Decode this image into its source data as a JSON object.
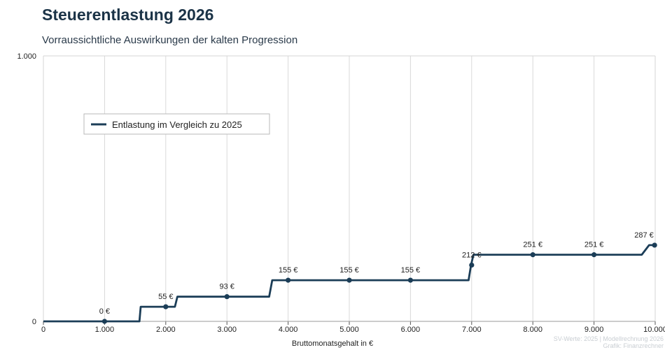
{
  "title": "Steuerentlastung 2026",
  "subtitle": "Vorraussichtliche Auswirkungen der kalten Progression",
  "credits": {
    "line1": "SV-Werte: 2025 | Modellrechnung 2026",
    "line2": "Grafik: Finanzrechner"
  },
  "colors": {
    "series": "#1b3d57",
    "grid": "#d9d9d9",
    "title": "#1b3347"
  },
  "chart_data": {
    "type": "line",
    "title": "Steuerentlastung 2026",
    "subtitle": "Vorraussichtliche Auswirkungen der kalten Progression",
    "xlabel": "Bruttomonatsgehalt in €",
    "ylabel": "",
    "xlim": [
      0,
      10000
    ],
    "ylim": [
      0,
      1000
    ],
    "grid": true,
    "legend_position": "top-left",
    "x_ticks": [
      {
        "value": 0,
        "label": "0"
      },
      {
        "value": 1000,
        "label": "1.000"
      },
      {
        "value": 2000,
        "label": "2.000"
      },
      {
        "value": 3000,
        "label": "3.000"
      },
      {
        "value": 4000,
        "label": "4.000"
      },
      {
        "value": 5000,
        "label": "5.000"
      },
      {
        "value": 6000,
        "label": "6.000"
      },
      {
        "value": 7000,
        "label": "7.000"
      },
      {
        "value": 8000,
        "label": "8.000"
      },
      {
        "value": 9000,
        "label": "9.000"
      },
      {
        "value": 10000,
        "label": "10.000"
      }
    ],
    "y_ticks": [
      {
        "value": 0,
        "label": "0"
      },
      {
        "value": 1000,
        "label": "1.000"
      }
    ],
    "series": [
      {
        "name": "Entlastung im Vergleich zu 2025",
        "line": [
          [
            0,
            0
          ],
          [
            1570,
            0
          ],
          [
            1590,
            55
          ],
          [
            1850,
            55
          ],
          [
            2150,
            55
          ],
          [
            2190,
            93
          ],
          [
            3690,
            93
          ],
          [
            3740,
            155
          ],
          [
            6950,
            155
          ],
          [
            6990,
            212
          ],
          [
            7030,
            251
          ],
          [
            9780,
            251
          ],
          [
            9900,
            287
          ],
          [
            10000,
            287
          ]
        ],
        "markers": [
          {
            "x": 1000,
            "y": 0,
            "label": "0 €"
          },
          {
            "x": 2000,
            "y": 55,
            "label": "55 €"
          },
          {
            "x": 3000,
            "y": 93,
            "label": "93 €"
          },
          {
            "x": 4000,
            "y": 155,
            "label": "155 €"
          },
          {
            "x": 5000,
            "y": 155,
            "label": "155 €"
          },
          {
            "x": 6000,
            "y": 155,
            "label": "155 €"
          },
          {
            "x": 7000,
            "y": 212,
            "label": "212 €"
          },
          {
            "x": 8000,
            "y": 251,
            "label": "251 €"
          },
          {
            "x": 9000,
            "y": 251,
            "label": "251 €"
          },
          {
            "x": 9990,
            "y": 287,
            "label": "287 €"
          }
        ]
      }
    ]
  }
}
